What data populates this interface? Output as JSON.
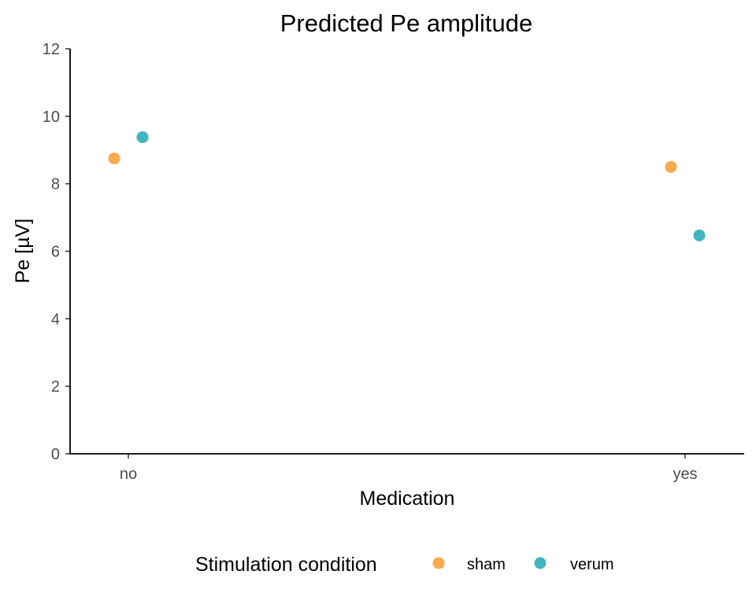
{
  "chart_data": {
    "type": "scatter",
    "title": "Predicted Pe amplitude",
    "xlabel": "Medication",
    "ylabel": "Pe [µV]",
    "categories": [
      "no",
      "yes"
    ],
    "ylim": [
      0,
      12
    ],
    "yticks": [
      "0",
      "2",
      "4",
      "6",
      "8",
      "10",
      "12"
    ],
    "grid": false,
    "legend": {
      "title": "Stimulation condition",
      "placement": "bottom"
    },
    "series": [
      {
        "name": "sham",
        "color": "#FBAA4C",
        "values": [
          8.75,
          8.5
        ]
      },
      {
        "name": "verum",
        "color": "#40B5C2",
        "values": [
          9.38,
          6.47
        ]
      }
    ]
  }
}
